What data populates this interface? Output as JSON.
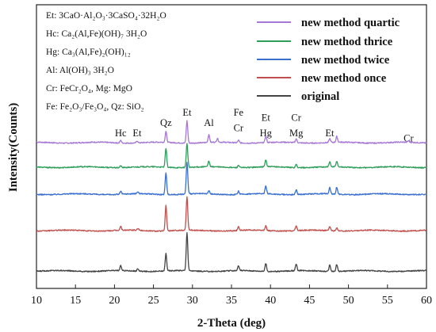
{
  "chart_data": {
    "type": "line",
    "xlabel": "2-Theta (deg)",
    "ylabel": "Intensity(Counts)",
    "xlim": [
      10,
      60
    ],
    "xticks": [
      "10",
      "15",
      "20",
      "25",
      "30",
      "35",
      "40",
      "45",
      "50",
      "55",
      "60"
    ],
    "grid": false,
    "legend_position": "top-right",
    "phase_key": [
      "Et: 3CaO·Al₂O₃·3CaSO₄·32H₂O",
      "Hc: Ca₂(Al,Fe)(OH)₇ 3H₂O",
      "Hg: Ca₃(Al,Fe)₂(OH)₁₂",
      "Al: Al(OH)₃ 3H₂O",
      "Cr: FeCr₂O₄,  Mg: MgO",
      "Fe: Fe₂O₃/Fe₃O₄,  Qz: SiO₂"
    ],
    "peak_labels": [
      {
        "text": "Hc",
        "x": 20.8,
        "row": 1
      },
      {
        "text": "Et",
        "x": 22.9,
        "row": 1
      },
      {
        "text": "Qz",
        "x": 26.6,
        "row": 0
      },
      {
        "text": "Et",
        "x": 29.3,
        "row": -1
      },
      {
        "text": "Al",
        "x": 32.1,
        "row": 0
      },
      {
        "text": "Fe",
        "x": 35.9,
        "row": -1
      },
      {
        "text": "Cr",
        "x": 35.9,
        "row": 0.5
      },
      {
        "text": "Et",
        "x": 39.4,
        "row": -0.5
      },
      {
        "text": "Hg",
        "x": 39.4,
        "row": 1
      },
      {
        "text": "Cr",
        "x": 43.3,
        "row": -0.5
      },
      {
        "text": "Mg",
        "x": 43.3,
        "row": 1
      },
      {
        "text": "Et",
        "x": 47.6,
        "row": 1
      },
      {
        "text": "Cr",
        "x": 57.7,
        "row": 1.5
      }
    ],
    "series": [
      {
        "name": "new method  quartic",
        "color": "#a678d6",
        "peaks": [
          [
            20.8,
            0.08
          ],
          [
            22.9,
            0.06
          ],
          [
            26.6,
            0.35
          ],
          [
            29.3,
            0.7
          ],
          [
            32.1,
            0.25
          ],
          [
            33.2,
            0.12
          ],
          [
            35.9,
            0.08
          ],
          [
            39.4,
            0.2
          ],
          [
            43.3,
            0.12
          ],
          [
            47.6,
            0.12
          ],
          [
            48.5,
            0.18
          ],
          [
            57.7,
            0.05
          ]
        ]
      },
      {
        "name": "new method  thrice",
        "color": "#2e9e5b",
        "peaks": [
          [
            20.8,
            0.06
          ],
          [
            26.6,
            0.6
          ],
          [
            29.3,
            0.75
          ],
          [
            32.1,
            0.18
          ],
          [
            35.9,
            0.08
          ],
          [
            39.4,
            0.22
          ],
          [
            43.3,
            0.1
          ],
          [
            47.6,
            0.15
          ],
          [
            48.5,
            0.18
          ]
        ]
      },
      {
        "name": "new method  twice",
        "color": "#3a6fd0",
        "peaks": [
          [
            20.8,
            0.1
          ],
          [
            23.0,
            0.06
          ],
          [
            26.6,
            0.7
          ],
          [
            29.3,
            1.0
          ],
          [
            32.1,
            0.1
          ],
          [
            35.9,
            0.1
          ],
          [
            39.4,
            0.25
          ],
          [
            43.3,
            0.15
          ],
          [
            47.6,
            0.2
          ],
          [
            48.5,
            0.22
          ]
        ]
      },
      {
        "name": "new method  once",
        "color": "#c0504d",
        "peaks": [
          [
            20.8,
            0.12
          ],
          [
            23.0,
            0.06
          ],
          [
            26.6,
            0.8
          ],
          [
            29.3,
            1.05
          ],
          [
            35.9,
            0.12
          ],
          [
            39.4,
            0.15
          ],
          [
            43.3,
            0.15
          ],
          [
            47.6,
            0.12
          ],
          [
            48.5,
            0.1
          ]
        ]
      },
      {
        "name": "original",
        "color": "#444444",
        "peaks": [
          [
            20.8,
            0.15
          ],
          [
            23.0,
            0.08
          ],
          [
            26.6,
            0.55
          ],
          [
            29.3,
            1.2
          ],
          [
            35.9,
            0.15
          ],
          [
            39.4,
            0.25
          ],
          [
            43.3,
            0.2
          ],
          [
            47.6,
            0.2
          ],
          [
            48.5,
            0.22
          ]
        ]
      }
    ]
  }
}
